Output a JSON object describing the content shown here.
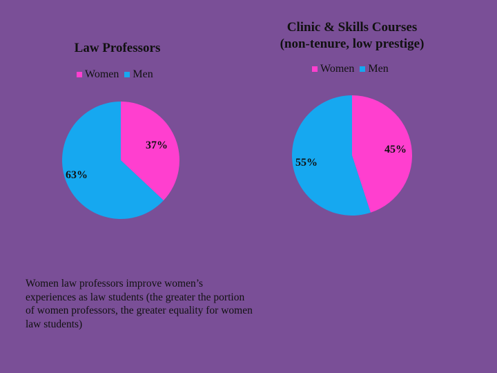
{
  "colors": {
    "background": "#7a4f97",
    "women": "#ff3fcf",
    "men": "#16a8f0"
  },
  "chart_data": [
    {
      "type": "pie",
      "title": "Law Professors",
      "categories": [
        "Women",
        "Men"
      ],
      "values": [
        37,
        63
      ],
      "labels": [
        "37%",
        "63%"
      ],
      "legend": "top"
    },
    {
      "type": "pie",
      "title": "Clinic & Skills Courses (non-tenure, low prestige)",
      "title_lines": [
        "Clinic & Skills Courses",
        "(non-tenure, low prestige)"
      ],
      "categories": [
        "Women",
        "Men"
      ],
      "values": [
        45,
        55
      ],
      "labels": [
        "45%",
        "55%"
      ],
      "legend": "top"
    }
  ],
  "note": "Women law professors improve women’s experiences as law students (the greater the portion of women professors, the greater equality for women law students)"
}
